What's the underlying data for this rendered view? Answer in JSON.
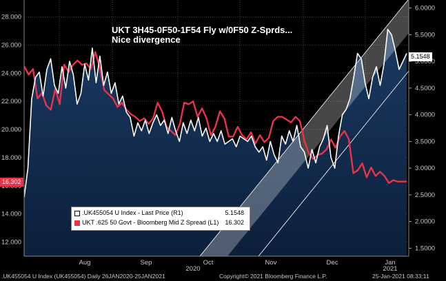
{
  "chart_data": {
    "type": "line",
    "title": "UKT 3H45-0F50-1F54 Fly w/0F50 Z-Sprds...",
    "subtitle": "Nice divergence",
    "left_axis": {
      "ticks": [
        "12.000",
        "14.000",
        "16.000",
        "18.000",
        "20.000",
        "22.000",
        "24.000",
        "26.000",
        "28.000"
      ],
      "range": [
        11.0,
        29.2
      ]
    },
    "right_axis": {
      "ticks": [
        "1.5000",
        "2.0000",
        "2.5000",
        "3.0000",
        "3.5000",
        "4.0000",
        "4.5000",
        "5.0000",
        "5.5000",
        "6.0000"
      ],
      "range": [
        1.35,
        6.15
      ]
    },
    "x_axis": {
      "months": [
        "Aug",
        "Sep",
        "Oct",
        "Nov",
        "Dec",
        "Jan"
      ],
      "years": [
        "2020",
        "2021"
      ]
    },
    "series": [
      {
        "name": ".UK455054 U Index - Last Price (R1)",
        "axis": "right",
        "color": "#ffffff",
        "last_value": "5.1548",
        "values": [
          2.45,
          3.0,
          4.3,
          4.7,
          4.8,
          4.35,
          4.85,
          5.05,
          4.55,
          4.4,
          4.9,
          4.5,
          5.0,
          4.75,
          4.2,
          4.4,
          4.95,
          4.65,
          5.25,
          4.6,
          5.1,
          4.55,
          4.8,
          4.4,
          4.6,
          4.2,
          4.35,
          4.05,
          3.95,
          3.6,
          3.85,
          3.7,
          3.9,
          3.65,
          3.85,
          4.0,
          3.8,
          3.9,
          3.65,
          3.95,
          3.7,
          3.5,
          3.85,
          3.65,
          3.9,
          3.7,
          3.95,
          3.6,
          3.75,
          3.5,
          3.65,
          3.5,
          3.7,
          3.45,
          3.5,
          3.55,
          3.4,
          3.6,
          3.55,
          3.5,
          3.6,
          3.4,
          3.3,
          3.4,
          3.15,
          3.5,
          3.25,
          3.1,
          3.6,
          3.45,
          3.7,
          3.5,
          3.8,
          3.4,
          3.3,
          3.0,
          3.35,
          3.1,
          3.4,
          3.55,
          3.8,
          3.2,
          3.0,
          3.6,
          4.0,
          4.1,
          4.3,
          4.7,
          5.15,
          5.05,
          4.6,
          4.3,
          4.7,
          4.9,
          4.55,
          4.95,
          5.6,
          5.5,
          5.2,
          4.85,
          5.0,
          5.15
        ]
      },
      {
        "name": "UKT .625 50 Govt - Bloomberg Mid Z Spread (L1)",
        "axis": "left",
        "color": "#e8334a",
        "last_value": "16.302",
        "values": [
          24.5,
          23.9,
          24.3,
          22.2,
          22.6,
          21.7,
          21.4,
          22.9,
          21.8,
          24.6,
          24.1,
          24.6,
          24.9,
          24.6,
          24.7,
          24.3,
          25.5,
          24.4,
          22.8,
          22.5,
          22.2,
          21.6,
          21.9,
          21.4,
          21.1,
          20.9,
          20.6,
          20.8,
          20.4,
          20.8,
          21.9,
          21.3,
          20.2,
          19.9,
          19.6,
          20.4,
          21.9,
          21.8,
          22.0,
          20.9,
          21.5,
          20.8,
          19.6,
          20.2,
          21.3,
          20.8,
          19.5,
          19.5,
          20.2,
          19.6,
          19.3,
          19.8,
          19.0,
          19.6,
          19.1,
          19.4,
          20.6,
          20.9,
          20.9,
          20.7,
          20.5,
          20.9,
          20.6,
          19.2,
          18.3,
          17.9,
          18.2,
          18.3,
          18.6,
          19.3,
          18.7,
          19.5,
          19.9,
          19.3,
          16.9,
          17.1,
          17.6,
          16.6,
          17.3,
          16.7,
          17.0,
          16.7,
          16.2,
          16.4,
          16.3,
          16.3,
          16.302
        ]
      }
    ],
    "tags": {
      "right_last": "5.1548",
      "left_last": "16.302"
    }
  },
  "footer": {
    "left": ".UK455054 U Index (UK455054)  Daily 26JAN2020-25JAN2021",
    "center": "Copyright© 2021 Bloomberg Finance L.P.",
    "right": "25-Jan-2021 08:33:11"
  }
}
